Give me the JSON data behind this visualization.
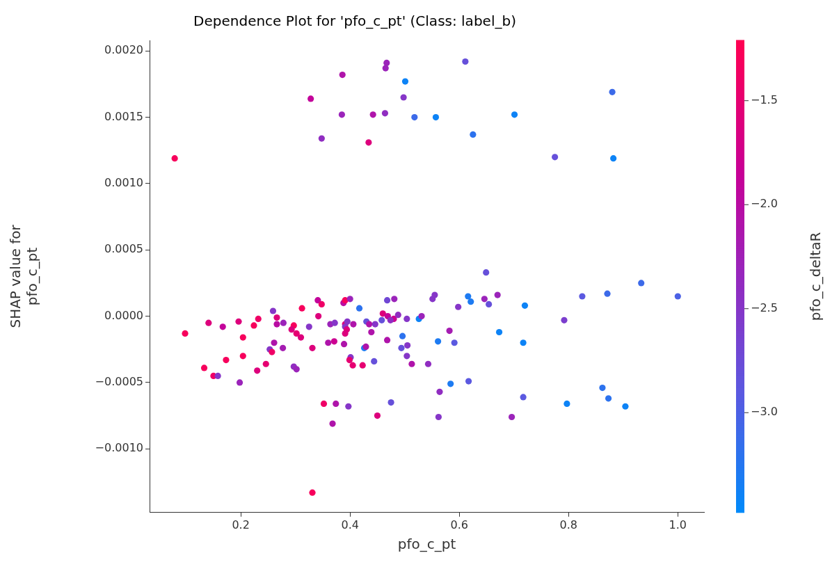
{
  "chart_data": {
    "type": "scatter",
    "title": "Dependence Plot for 'pfo_c_pt' (Class: label_b)",
    "xlabel": "pfo_c_pt",
    "ylabel": "SHAP value for pfo_c_pt",
    "clabel": "pfo_c_deltaR",
    "marker": "circle",
    "grid": false,
    "legend": false,
    "x": [
      0.467,
      0.465,
      0.386,
      0.501,
      0.328,
      0.498,
      0.385,
      0.442,
      0.464,
      0.518,
      0.348,
      0.434,
      0.079,
      0.611,
      0.88,
      0.557,
      0.701,
      0.625,
      0.775,
      0.882,
      0.098,
      0.141,
      0.167,
      0.196,
      0.204,
      0.173,
      0.133,
      0.15,
      0.158,
      0.198,
      0.204,
      0.224,
      0.232,
      0.259,
      0.266,
      0.266,
      0.278,
      0.261,
      0.253,
      0.257,
      0.277,
      0.23,
      0.246,
      0.297,
      0.293,
      0.302,
      0.31,
      0.312,
      0.325,
      0.341,
      0.348,
      0.342,
      0.331,
      0.36,
      0.371,
      0.364,
      0.372,
      0.297,
      0.302,
      0.352,
      0.374,
      0.649,
      0.388,
      0.391,
      0.4,
      0.417,
      0.468,
      0.481,
      0.551,
      0.555,
      0.616,
      0.621,
      0.646,
      0.67,
      0.654,
      0.598,
      0.673,
      0.582,
      0.561,
      0.591,
      0.46,
      0.469,
      0.48,
      0.488,
      0.458,
      0.474,
      0.504,
      0.526,
      0.531,
      0.43,
      0.435,
      0.446,
      0.391,
      0.395,
      0.406,
      0.391,
      0.394,
      0.391,
      0.439,
      0.389,
      0.426,
      0.429,
      0.468,
      0.496,
      0.494,
      0.505,
      0.504,
      0.401,
      0.399,
      0.405,
      0.423,
      0.444,
      0.513,
      0.543,
      0.584,
      0.617,
      0.564,
      0.397,
      0.475,
      0.933,
      0.825,
      0.871,
      1.0,
      0.72,
      0.792,
      0.717,
      0.717,
      0.797,
      0.862,
      0.873,
      0.904,
      0.368,
      0.45,
      0.562,
      0.696,
      0.331
    ],
    "values": [
      0.00191,
      0.00187,
      0.00182,
      0.00177,
      0.00164,
      0.00165,
      0.00152,
      0.00152,
      0.00153,
      0.0015,
      0.00134,
      0.00131,
      0.00119,
      0.00192,
      0.00169,
      0.0015,
      0.00152,
      0.00137,
      0.0012,
      0.00119,
      -0.00013,
      -5e-05,
      -8e-05,
      -4e-05,
      -0.00016,
      -0.00033,
      -0.00039,
      -0.00045,
      -0.00045,
      -0.0005,
      -0.0003,
      -7e-05,
      -2e-05,
      4e-05,
      -1e-05,
      -6e-05,
      -5e-05,
      -0.0002,
      -0.00025,
      -0.00027,
      -0.00024,
      -0.00041,
      -0.00036,
      -7e-05,
      -0.0001,
      -0.00013,
      -0.00016,
      6e-05,
      -8e-05,
      0.00012,
      9e-05,
      0.0,
      -0.00024,
      -0.0002,
      -0.00019,
      -6e-05,
      -5e-05,
      -0.00038,
      -0.0004,
      -0.00066,
      -0.00066,
      0.00033,
      0.0001,
      0.00012,
      0.00013,
      6e-05,
      0.00012,
      0.00013,
      0.00013,
      0.00016,
      0.00015,
      0.00011,
      0.00013,
      0.00016,
      9e-05,
      7e-05,
      -0.00012,
      -0.00011,
      -0.00019,
      -0.0002,
      2e-05,
      0.0,
      -2e-05,
      1e-05,
      -3e-05,
      -3e-05,
      -2e-05,
      -2e-05,
      0.0,
      -4e-05,
      -6e-05,
      -6e-05,
      -6e-05,
      -4e-05,
      -6e-05,
      -8e-05,
      -0.0001,
      -0.00013,
      -0.00012,
      -0.00021,
      -0.00024,
      -0.00023,
      -0.00018,
      -0.00015,
      -0.00024,
      -0.00022,
      -0.0003,
      -0.00031,
      -0.00033,
      -0.00037,
      -0.00037,
      -0.00034,
      -0.00036,
      -0.00036,
      -0.00051,
      -0.00049,
      -0.00057,
      -0.00068,
      -0.00065,
      0.00025,
      0.00015,
      0.00017,
      0.00015,
      8e-05,
      -3e-05,
      -0.0002,
      -0.00061,
      -0.00066,
      -0.00054,
      -0.00062,
      -0.00068,
      -0.00081,
      -0.00075,
      -0.00076,
      -0.00076,
      -0.00133
    ],
    "cvalues": [
      -2.3,
      -2.3,
      -2.1,
      -3.4,
      -1.9,
      -2.5,
      -2.3,
      -2.1,
      -2.4,
      -3.1,
      -2.4,
      -1.6,
      -1.3,
      -2.8,
      -3.1,
      -3.4,
      -3.4,
      -3.2,
      -2.8,
      -3.4,
      -1.3,
      -1.6,
      -1.9,
      -1.6,
      -1.3,
      -1.3,
      -1.3,
      -1.4,
      -2.5,
      -2.3,
      -1.3,
      -1.3,
      -1.4,
      -2.5,
      -1.6,
      -2.0,
      -2.3,
      -2.1,
      -2.5,
      -1.4,
      -2.2,
      -1.6,
      -1.5,
      -1.3,
      -1.6,
      -1.5,
      -1.6,
      -1.3,
      -2.5,
      -1.9,
      -1.4,
      -1.6,
      -1.6,
      -2.1,
      -1.8,
      -2.3,
      -2.5,
      -2.4,
      -2.3,
      -1.4,
      -2.1,
      -2.8,
      -2.0,
      -1.3,
      -2.3,
      -3.2,
      -2.7,
      -2.3,
      -2.5,
      -2.5,
      -3.3,
      -3.3,
      -2.3,
      -2.3,
      -2.8,
      -2.5,
      -3.4,
      -2.2,
      -3.3,
      -2.9,
      -1.6,
      -1.9,
      -1.8,
      -2.4,
      -2.8,
      -2.4,
      -2.5,
      -3.4,
      -2.3,
      -2.8,
      -2.1,
      -2.5,
      -1.6,
      -2.5,
      -2.1,
      -2.5,
      -1.6,
      -1.6,
      -2.1,
      -2.1,
      -3.3,
      -2.1,
      -2.1,
      -3.2,
      -2.8,
      -2.5,
      -2.5,
      -2.5,
      -1.5,
      -1.5,
      -1.5,
      -2.8,
      -2.1,
      -2.4,
      -3.3,
      -2.9,
      -2.4,
      -2.5,
      -2.8,
      -3.1,
      -2.9,
      -3.1,
      -3.0,
      -3.4,
      -2.6,
      -3.4,
      -2.9,
      -3.4,
      -3.2,
      -3.2,
      -3.4,
      -2.1,
      -1.6,
      -2.5,
      -2.3,
      -1.3
    ],
    "xlim": [
      0.033,
      1.048
    ],
    "xticks": [
      0.2,
      0.4,
      0.6,
      0.8,
      {
        "value": 1.0,
        "label": "1.0"
      }
    ],
    "ylim": [
      -0.00148,
      0.00208
    ],
    "yticks": [
      {
        "value": -0.001,
        "label": "−0.0010"
      },
      {
        "value": -0.0005,
        "label": "−0.0005"
      },
      {
        "value": 0,
        "label": "0.0000"
      },
      {
        "value": 0.0005,
        "label": "0.0005"
      },
      {
        "value": 0.001,
        "label": "0.0010"
      },
      {
        "value": 0.0015,
        "label": "0.0015"
      },
      {
        "value": 0.002,
        "label": "0.0020"
      }
    ],
    "clim": [
      -3.48,
      -1.21
    ],
    "cticks": [
      {
        "value": -3.0,
        "label": "−3.0"
      },
      {
        "value": -2.5,
        "label": "−2.5"
      },
      {
        "value": -2.0,
        "label": "−2.0"
      },
      {
        "value": -1.5,
        "label": "−1.5"
      }
    ]
  }
}
